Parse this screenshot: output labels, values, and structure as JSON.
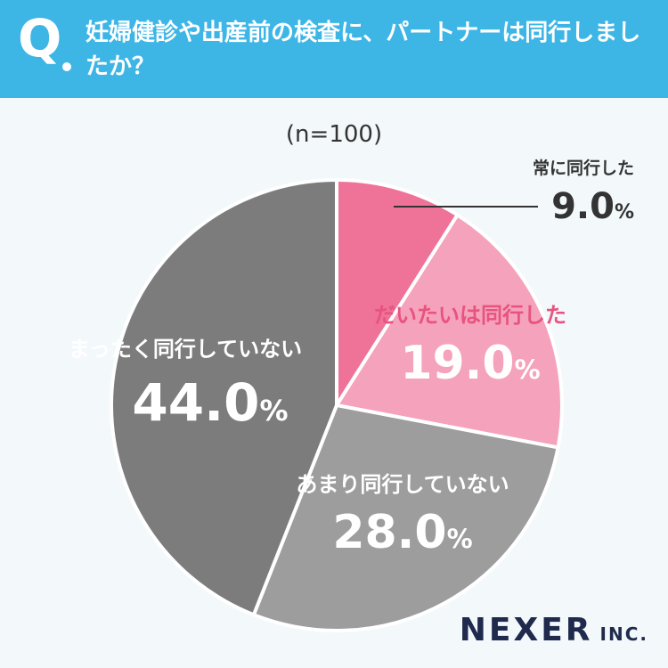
{
  "header": {
    "q_mark": "Q",
    "question": "妊婦健診や出産前の検査に、パートナーは同行しましたか？"
  },
  "sample_size": "(n=100)",
  "chart_data": {
    "type": "pie",
    "start_angle_deg": 0,
    "direction": "clockwise",
    "slices": [
      {
        "label": "常に同行した",
        "value": 9.0,
        "display": "9.0",
        "color": "#ef7399"
      },
      {
        "label": "だいたいは同行した",
        "value": 19.0,
        "display": "19.0",
        "color": "#f5a2bc"
      },
      {
        "label": "あまり同行していない",
        "value": 28.0,
        "display": "28.0",
        "color": "#9d9d9d"
      },
      {
        "label": "まったく同行していない",
        "value": 44.0,
        "display": "44.0",
        "color": "#7c7c7c"
      }
    ],
    "unit": "%"
  },
  "logo": {
    "main": "NEXER",
    "suffix": "INC."
  }
}
